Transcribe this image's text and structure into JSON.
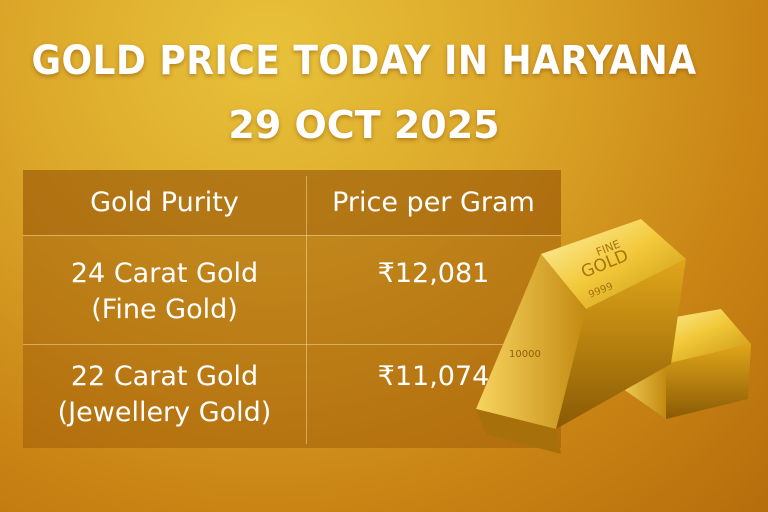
{
  "title": "GOLD PRICE TODAY IN HARYANA",
  "date": "29 OCT 2025",
  "table": {
    "headers": [
      "Gold Purity",
      "Price per Gram"
    ],
    "rows": [
      {
        "purity_line1": "24 Carat Gold",
        "purity_line2": "(Fine Gold)",
        "price": "₹12,081"
      },
      {
        "purity_line1": "22 Carat Gold",
        "purity_line2": "(Jewellery Gold)",
        "price": "₹11,074"
      }
    ]
  },
  "bar_stamp": {
    "line1": "FINE",
    "line2": "GOLD",
    "line3": "9999",
    "side": "10000"
  }
}
